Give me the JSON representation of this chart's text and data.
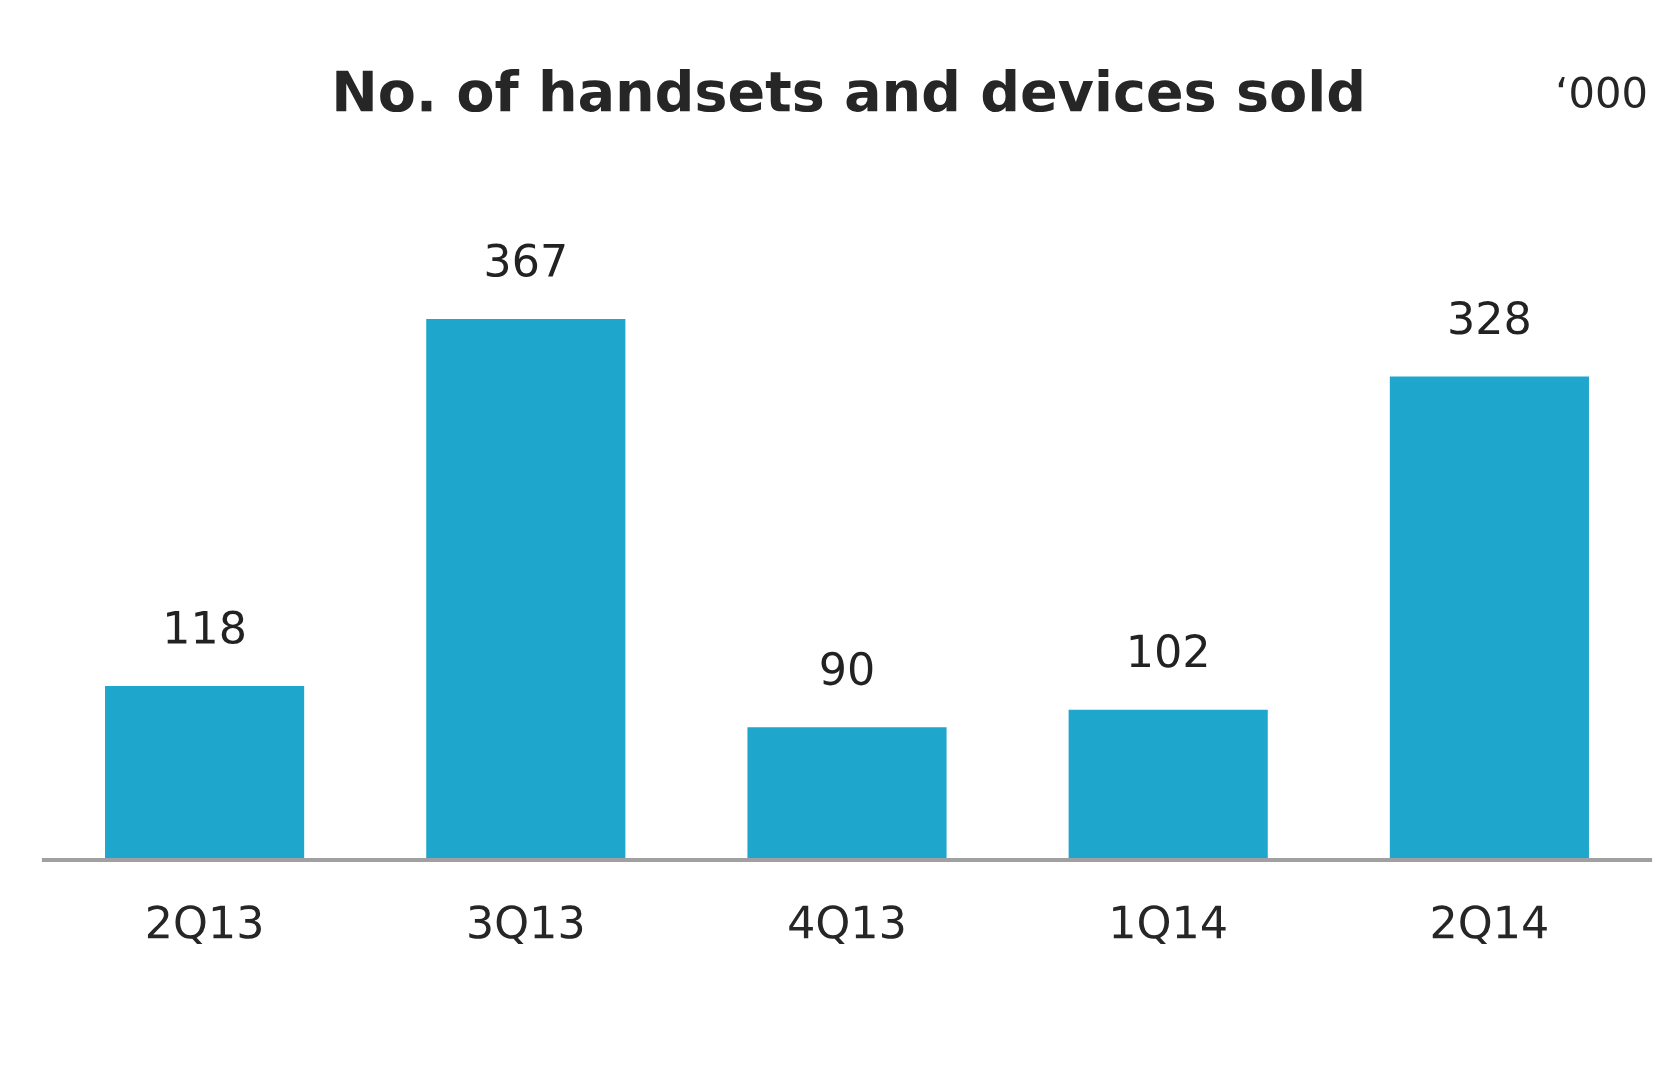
{
  "chart_data": {
    "type": "bar",
    "title": "No. of handsets and devices sold",
    "annotations": [
      "‘000"
    ],
    "categories": [
      "2Q13",
      "3Q13",
      "4Q13",
      "1Q14",
      "2Q14"
    ],
    "values": [
      118,
      367,
      90,
      102,
      328
    ],
    "color": "#1fa6cc",
    "data_labels": true,
    "grid": false,
    "legend": false
  }
}
